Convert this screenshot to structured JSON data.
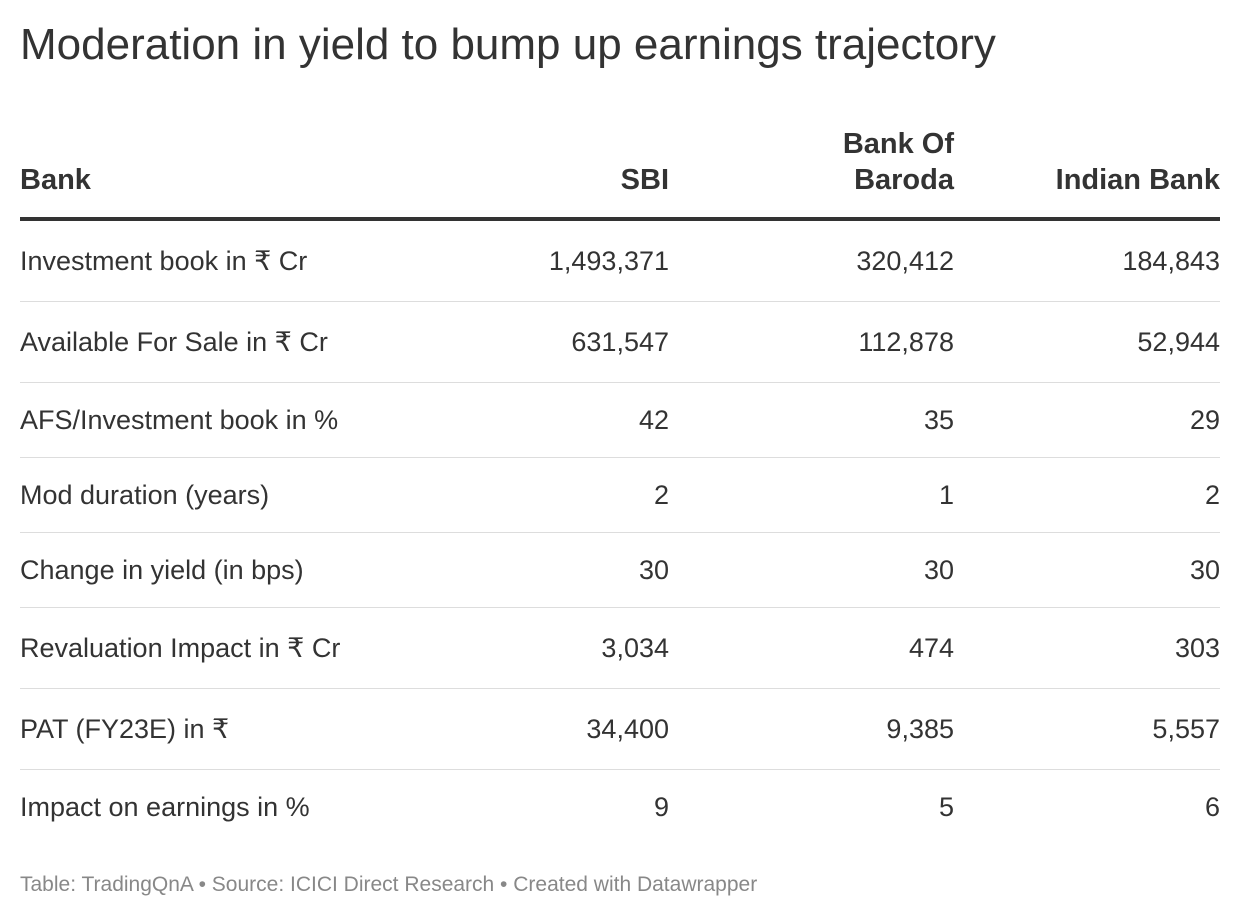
{
  "title": "Moderation in yield to bump up earnings trajectory",
  "chart_data": {
    "type": "table",
    "title": "Moderation in yield to bump up earnings trajectory",
    "columns": [
      "Bank",
      "SBI",
      "Bank Of Baroda",
      "Indian Bank"
    ],
    "rows": [
      {
        "label": "Investment book in ₹ Cr",
        "values": [
          "1,493,371",
          "320,412",
          "184,843"
        ]
      },
      {
        "label": "Available For Sale in ₹ Cr",
        "values": [
          "631,547",
          "112,878",
          "52,944"
        ]
      },
      {
        "label": "AFS/Investment book in %",
        "values": [
          "42",
          "35",
          "29"
        ]
      },
      {
        "label": "Mod duration (years)",
        "values": [
          "2",
          "1",
          "2"
        ]
      },
      {
        "label": "Change in yield (in bps)",
        "values": [
          "30",
          "30",
          "30"
        ]
      },
      {
        "label": "Revaluation Impact in ₹ Cr",
        "values": [
          "3,034",
          "474",
          "303"
        ]
      },
      {
        "label": "PAT (FY23E) in ₹",
        "values": [
          "34,400",
          "9,385",
          "5,557"
        ]
      },
      {
        "label": "Impact on earnings in %",
        "values": [
          "9",
          "5",
          "6"
        ]
      }
    ]
  },
  "footer": "Table: TradingQnA • Source: ICICI Direct Research • Created with Datawrapper",
  "colors": {
    "text": "#333333",
    "footer": "#888888",
    "header_rule": "#333333",
    "row_rule": "#dddddd"
  }
}
